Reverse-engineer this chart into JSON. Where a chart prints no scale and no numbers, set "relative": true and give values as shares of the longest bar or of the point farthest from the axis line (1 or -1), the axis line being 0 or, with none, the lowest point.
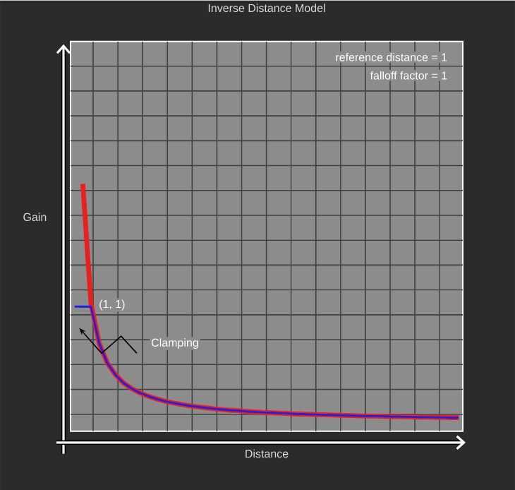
{
  "chart_data": {
    "type": "line",
    "title": "Inverse Distance Model",
    "xlabel": "Distance",
    "ylabel": "Gain",
    "annotations": [
      "reference distance = 1",
      "falloff factor = 1",
      "(1, 1)",
      "Clamping"
    ],
    "relative": true,
    "categories": [
      null,
      null,
      null,
      null,
      null,
      null,
      null,
      null,
      null,
      null,
      null,
      null,
      null,
      null,
      null,
      null,
      null,
      null,
      null,
      null,
      null,
      null,
      null,
      null,
      null,
      null,
      null,
      null,
      null,
      null,
      null,
      null,
      null,
      null,
      null,
      null,
      null,
      null,
      null,
      null,
      null,
      null,
      null,
      null,
      null,
      null,
      null,
      null
    ],
    "series": [
      {
        "color": "#e82020",
        "values": [
          null,
          1,
          0.517,
          0.356,
          0.276,
          0.228,
          0.195,
          0.172,
          0.155,
          0.142,
          0.131,
          0.122,
          0.115,
          0.109,
          0.103,
          0.099,
          0.095,
          0.091,
          0.088,
          0.085,
          0.083,
          0.08,
          0.078,
          0.076,
          0.075,
          0.073,
          0.072,
          0.07,
          0.069,
          0.068,
          0.067,
          0.066,
          0.065,
          0.064,
          0.063,
          0.062,
          0.061,
          0.061,
          0.06,
          0.059,
          0.059,
          0.058,
          0.057,
          0.057,
          0.056,
          0.056,
          0.055,
          0.055
        ]
      },
      {
        "color": "#2020e0",
        "values": [
          0.504,
          0.504,
          0.504,
          0.356,
          0.276,
          0.228,
          0.195,
          0.172,
          0.155,
          0.142,
          0.131,
          0.122,
          0.115,
          0.109,
          0.103,
          0.099,
          0.095,
          0.091,
          0.088,
          0.085,
          0.083,
          0.08,
          0.078,
          0.076,
          0.075,
          0.073,
          0.072,
          0.07,
          0.069,
          0.068,
          0.067,
          0.066,
          0.065,
          0.064,
          0.063,
          0.062,
          0.061,
          0.061,
          0.06,
          0.059,
          0.059,
          0.058,
          0.057,
          0.057,
          0.056,
          0.056,
          0.055,
          0.055
        ]
      }
    ],
    "grid": true
  }
}
